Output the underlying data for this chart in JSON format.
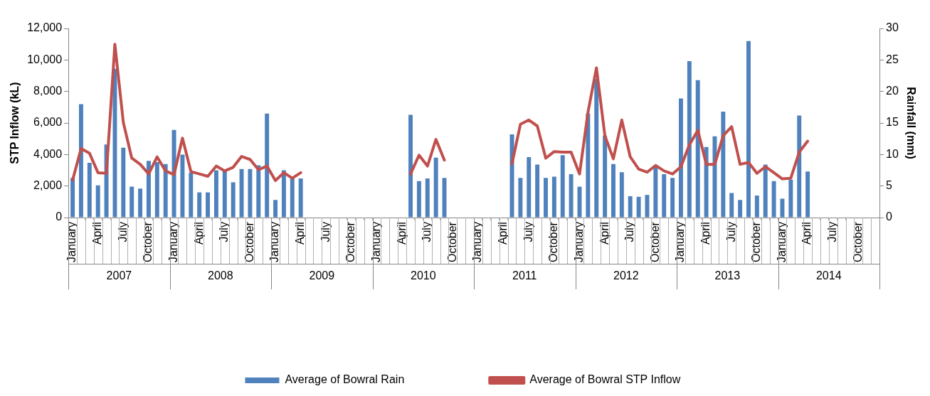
{
  "chart_data": {
    "type": "bar",
    "ylabel": "STP Inflow (kL)",
    "y2label": "Rainfall (mm)",
    "categories": [
      "January",
      null,
      null,
      "April",
      null,
      null,
      "July",
      null,
      null,
      "October",
      null,
      null,
      "January",
      null,
      null,
      "April",
      null,
      null,
      "July",
      null,
      null,
      "October",
      null,
      null,
      "January",
      null,
      null,
      "April",
      null,
      null,
      "July",
      null,
      null,
      "October",
      null,
      null,
      "January",
      null,
      null,
      "April",
      null,
      null,
      "July",
      null,
      null,
      "October",
      null,
      null,
      "January",
      null,
      null,
      "April",
      null,
      null,
      "July",
      null,
      null,
      "October",
      null,
      null,
      "January",
      null,
      null,
      "April",
      null,
      null,
      "July",
      null,
      null,
      "October",
      null,
      null,
      "January",
      null,
      null,
      "April",
      null,
      null,
      "July",
      null,
      null,
      "October",
      null,
      null,
      "January",
      null,
      null,
      "April",
      null,
      null,
      "July",
      null,
      null,
      "October",
      null,
      null
    ],
    "annotations": [
      "2007",
      "2008",
      "2009",
      "2010",
      "2011",
      "2012",
      "2013",
      "2014"
    ],
    "series": [
      {
        "name": "Average of Bowral Rain",
        "axis": "y2",
        "color": "#4f81bd",
        "values": [
          6.3,
          18.0,
          8.7,
          5.1,
          11.6,
          23.6,
          11.1,
          4.9,
          4.6,
          9.0,
          8.8,
          8.5,
          13.9,
          10.0,
          7.1,
          4.0,
          4.0,
          7.5,
          7.4,
          5.6,
          7.7,
          7.7,
          8.3,
          16.5,
          2.8,
          7.5,
          6.3,
          6.2,
          null,
          null,
          null,
          null,
          null,
          null,
          null,
          null,
          null,
          null,
          null,
          null,
          16.3,
          5.8,
          6.2,
          9.5,
          6.3,
          null,
          null,
          null,
          null,
          null,
          null,
          null,
          13.2,
          6.3,
          9.6,
          8.4,
          6.3,
          6.5,
          9.9,
          6.9,
          4.9,
          16.5,
          22.0,
          13.0,
          8.5,
          7.2,
          3.4,
          3.3,
          3.6,
          8.0,
          6.9,
          6.3,
          18.9,
          24.8,
          21.8,
          11.2,
          12.9,
          16.8,
          3.9,
          2.8,
          28.0,
          3.5,
          8.4,
          5.8,
          3.0,
          6.0,
          16.2,
          7.3,
          null,
          null,
          null,
          null,
          null,
          null,
          null,
          null
        ]
      },
      {
        "name": "Average of Bowral STP Inflow",
        "type": "line",
        "color": "#c0504d",
        "values": [
          2380,
          4380,
          4080,
          2850,
          2810,
          11000,
          6040,
          3770,
          3380,
          2770,
          3850,
          2960,
          2730,
          5040,
          2920,
          2770,
          2620,
          3270,
          2960,
          3190,
          3880,
          3690,
          3040,
          3270,
          2350,
          2850,
          2500,
          2850,
          null,
          null,
          null,
          null,
          null,
          null,
          null,
          null,
          null,
          null,
          null,
          null,
          2770,
          3960,
          3270,
          4960,
          3650,
          null,
          null,
          null,
          null,
          null,
          null,
          null,
          3420,
          5920,
          6190,
          5810,
          3770,
          4190,
          4150,
          4150,
          2770,
          6690,
          9500,
          5190,
          3730,
          6190,
          3850,
          3080,
          2880,
          3310,
          2960,
          2770,
          3230,
          4620,
          5540,
          3380,
          3380,
          5190,
          5770,
          3380,
          3500,
          2810,
          3230,
          2850,
          2460,
          2500,
          4150,
          4850,
          null,
          null,
          null,
          null,
          null,
          null,
          null,
          null
        ]
      }
    ],
    "ylim": [
      0,
      12000
    ],
    "yticks": [
      0,
      {
        "value": 2000,
        "label": "2,000"
      },
      {
        "value": 4000,
        "label": "4,000"
      },
      {
        "value": 6000,
        "label": "6,000"
      },
      {
        "value": 8000,
        "label": "8,000"
      },
      {
        "value": 10000,
        "label": "10,000"
      },
      {
        "value": 12000,
        "label": "12,000"
      }
    ],
    "y2lim": [
      0,
      30
    ],
    "y2ticks": [
      0,
      5,
      10,
      15,
      20,
      25,
      30
    ],
    "grid": false,
    "legend": "bottom",
    "marker": "none",
    "line_style": "solid"
  }
}
